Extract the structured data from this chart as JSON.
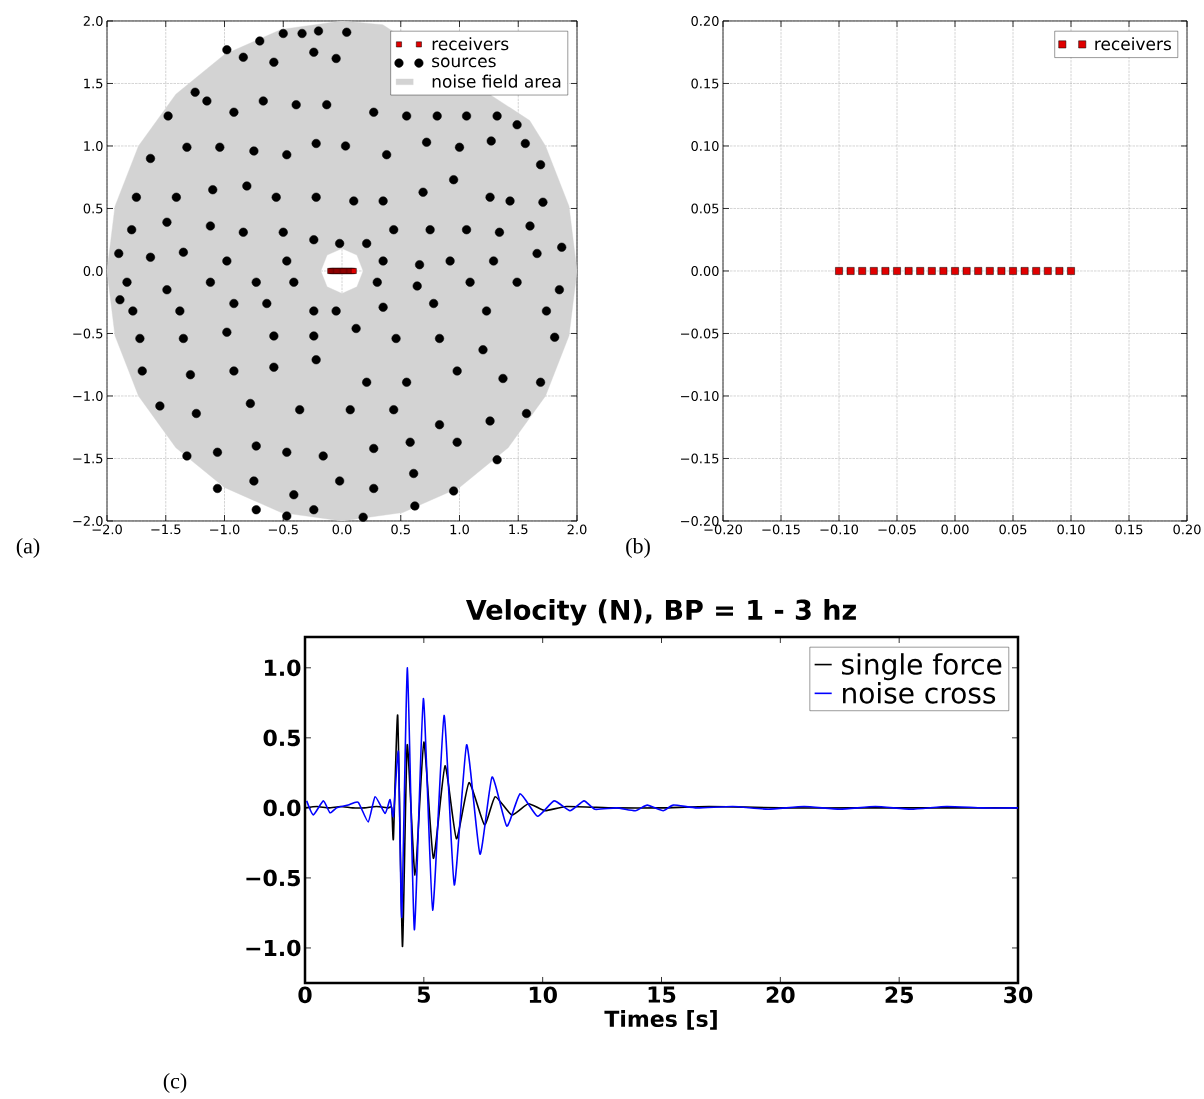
{
  "chart_data": [
    {
      "type": "scatter",
      "xlim": [
        -2,
        2
      ],
      "ylim": [
        -2,
        2
      ],
      "xticks": [
        {
          "value": -2,
          "label": "−2.0"
        },
        {
          "value": -1.5,
          "label": "−1.5"
        },
        {
          "value": -1,
          "label": "−1.0"
        },
        {
          "value": -0.5,
          "label": "−0.5"
        },
        {
          "value": 0,
          "label": "0.0"
        },
        {
          "value": 0.5,
          "label": "0.5"
        },
        {
          "value": 1,
          "label": "1.0"
        },
        {
          "value": 1.5,
          "label": "1.5"
        },
        {
          "value": 2,
          "label": "2.0"
        }
      ],
      "yticks": [
        {
          "value": -2,
          "label": "−2.0"
        },
        {
          "value": -1.5,
          "label": "−1.5"
        },
        {
          "value": -1,
          "label": "−1.0"
        },
        {
          "value": -0.5,
          "label": "−0.5"
        },
        {
          "value": 0,
          "label": "0.0"
        },
        {
          "value": 0.5,
          "label": "0.5"
        },
        {
          "value": 1,
          "label": "1.0"
        },
        {
          "value": 1.5,
          "label": "1.5"
        },
        {
          "value": 2,
          "label": "2.0"
        }
      ],
      "grid": true,
      "legend": "top right",
      "annotations": [
        "(a)"
      ],
      "series": [
        {
          "name": "receivers",
          "type": "scatter",
          "marker": "square",
          "color": "#e00000",
          "x": [
            -0.1,
            -0.09,
            -0.08,
            -0.07,
            -0.06,
            -0.05,
            -0.04,
            -0.03,
            -0.02,
            -0.01,
            0,
            0.01,
            0.02,
            0.03,
            0.04,
            0.05,
            0.06,
            0.07,
            0.08,
            0.09,
            0.1
          ],
          "values": [
            0,
            0,
            0,
            0,
            0,
            0,
            0,
            0,
            0,
            0,
            0,
            0,
            0,
            0,
            0,
            0,
            0,
            0,
            0,
            0,
            0
          ]
        },
        {
          "name": "sources",
          "type": "scatter",
          "marker": "circle",
          "color": "#000000",
          "x": [
            -0.7,
            -0.2,
            0.04,
            -0.34,
            -0.5,
            -0.98,
            -0.84,
            -0.58,
            -0.24,
            -0.05,
            -1.25,
            -1.15,
            -1.48,
            -0.92,
            -0.67,
            -0.39,
            -0.13,
            0.27,
            0.55,
            0.81,
            1.06,
            1.32,
            1.49,
            -1.63,
            -1.32,
            -1.04,
            -0.75,
            -0.47,
            -0.22,
            0.03,
            0.38,
            0.72,
            1.0,
            1.27,
            1.56,
            1.69,
            -1.75,
            -1.41,
            -1.1,
            -0.81,
            -0.56,
            -0.22,
            0.1,
            0.35,
            0.69,
            0.95,
            1.26,
            1.43,
            1.71,
            -1.79,
            -1.49,
            -1.12,
            -0.84,
            -0.5,
            -0.24,
            -0.02,
            0.21,
            0.44,
            0.75,
            1.06,
            1.34,
            1.6,
            -1.9,
            -1.63,
            -1.35,
            -0.98,
            -0.47,
            0.35,
            0.66,
            0.92,
            1.29,
            1.66,
            1.87,
            -1.83,
            -1.49,
            -1.12,
            -0.73,
            -0.41,
            0.3,
            0.64,
            1.09,
            1.49,
            1.85,
            -1.89,
            -1.78,
            -1.38,
            -0.92,
            -0.64,
            -0.24,
            -0.05,
            0.35,
            0.78,
            1.23,
            1.74,
            -1.72,
            -1.35,
            -0.98,
            -0.58,
            -0.24,
            0.12,
            0.46,
            0.83,
            1.2,
            1.81,
            -1.7,
            -1.29,
            -0.92,
            -0.58,
            -0.22,
            0.21,
            0.55,
            0.98,
            1.37,
            1.69,
            -1.55,
            -1.24,
            -0.78,
            -0.36,
            0.07,
            0.44,
            0.83,
            1.26,
            1.57,
            -1.32,
            -1.06,
            -0.73,
            -0.47,
            -0.16,
            0.27,
            0.58,
            0.98,
            1.32,
            -1.06,
            -0.75,
            -0.41,
            -0.02,
            0.27,
            0.61,
            0.95,
            -0.73,
            -0.47,
            -0.24,
            0.18,
            0.62
          ],
          "values": [
            1.84,
            1.92,
            1.91,
            1.9,
            1.9,
            1.77,
            1.71,
            1.67,
            1.75,
            1.7,
            1.43,
            1.36,
            1.24,
            1.27,
            1.36,
            1.33,
            1.33,
            1.27,
            1.24,
            1.24,
            1.24,
            1.24,
            1.17,
            0.9,
            0.99,
            0.99,
            0.96,
            0.93,
            1.02,
            1.0,
            0.93,
            1.03,
            0.99,
            1.04,
            1.02,
            0.85,
            0.59,
            0.59,
            0.65,
            0.68,
            0.59,
            0.59,
            0.56,
            0.56,
            0.63,
            0.73,
            0.59,
            0.56,
            0.55,
            0.33,
            0.39,
            0.36,
            0.31,
            0.31,
            0.25,
            0.22,
            0.22,
            0.33,
            0.33,
            0.33,
            0.31,
            0.36,
            0.14,
            0.11,
            0.15,
            0.08,
            0.08,
            0.08,
            0.05,
            0.08,
            0.08,
            0.14,
            0.19,
            -0.09,
            -0.15,
            -0.09,
            -0.09,
            -0.09,
            -0.09,
            -0.12,
            -0.09,
            -0.09,
            -0.15,
            -0.23,
            -0.32,
            -0.32,
            -0.26,
            -0.26,
            -0.32,
            -0.32,
            -0.29,
            -0.26,
            -0.32,
            -0.32,
            -0.54,
            -0.54,
            -0.49,
            -0.52,
            -0.52,
            -0.46,
            -0.54,
            -0.54,
            -0.63,
            -0.53,
            -0.8,
            -0.83,
            -0.8,
            -0.77,
            -0.71,
            -0.89,
            -0.89,
            -0.8,
            -0.86,
            -0.89,
            -1.08,
            -1.14,
            -1.06,
            -1.11,
            -1.11,
            -1.11,
            -1.23,
            -1.2,
            -1.14,
            -1.48,
            -1.45,
            -1.4,
            -1.45,
            -1.48,
            -1.42,
            -1.37,
            -1.37,
            -1.51,
            -1.74,
            -1.68,
            -1.79,
            -1.68,
            -1.74,
            -1.62,
            -1.76,
            -1.91,
            -1.96,
            -1.91,
            -1.97,
            -1.88
          ]
        },
        {
          "name": "noise field area",
          "type": "area",
          "color": "#d3d3d3",
          "x": [
            2,
            1.932,
            1.732,
            1.597,
            0.347,
            0,
            -0.518,
            -1,
            -1.414,
            -1.732,
            -1.932,
            -2,
            -1.932,
            -1.732,
            -1.414,
            -1,
            -0.518,
            0,
            0.518,
            1,
            1.414,
            1.732,
            1.932,
            2,
            0.18,
            0.127,
            0,
            -0.127,
            -0.18,
            -0.127,
            0,
            0.127,
            0.18
          ],
          "values": [
            0,
            0.518,
            1,
            1.204,
            1.97,
            2,
            1.932,
            1.732,
            1.414,
            1,
            0.518,
            0,
            -0.518,
            -1,
            -1.414,
            -1.732,
            -1.932,
            -2,
            -1.932,
            -1.732,
            -1.414,
            -1,
            -0.518,
            0,
            0,
            0.127,
            0.18,
            0.127,
            0,
            -0.127,
            -0.18,
            -0.127,
            0
          ]
        }
      ]
    },
    {
      "type": "scatter",
      "xlim": [
        -0.2,
        0.2
      ],
      "ylim": [
        -0.2,
        0.2
      ],
      "xticks": [
        {
          "value": -0.2,
          "label": "−0.20"
        },
        {
          "value": -0.15,
          "label": "−0.15"
        },
        {
          "value": -0.1,
          "label": "−0.10"
        },
        {
          "value": -0.05,
          "label": "−0.05"
        },
        {
          "value": 0,
          "label": "0.00"
        },
        {
          "value": 0.05,
          "label": "0.05"
        },
        {
          "value": 0.1,
          "label": "0.10"
        },
        {
          "value": 0.15,
          "label": "0.15"
        },
        {
          "value": 0.2,
          "label": "0.20"
        }
      ],
      "yticks": [
        {
          "value": -0.2,
          "label": "−0.20"
        },
        {
          "value": -0.15,
          "label": "−0.15"
        },
        {
          "value": -0.1,
          "label": "−0.10"
        },
        {
          "value": -0.05,
          "label": "−0.05"
        },
        {
          "value": 0,
          "label": "0.00"
        },
        {
          "value": 0.05,
          "label": "0.05"
        },
        {
          "value": 0.1,
          "label": "0.10"
        },
        {
          "value": 0.15,
          "label": "0.15"
        },
        {
          "value": 0.2,
          "label": "0.20"
        }
      ],
      "grid": true,
      "legend": "top right",
      "annotations": [
        "(b)"
      ],
      "series": [
        {
          "name": "receivers",
          "type": "scatter",
          "marker": "square",
          "color": "#e00000",
          "x": [
            -0.1,
            -0.09,
            -0.08,
            -0.07,
            -0.06,
            -0.05,
            -0.04,
            -0.03,
            -0.02,
            -0.01,
            0,
            0.01,
            0.02,
            0.03,
            0.04,
            0.05,
            0.06,
            0.07,
            0.08,
            0.09,
            0.1
          ],
          "values": [
            0,
            0,
            0,
            0,
            0,
            0,
            0,
            0,
            0,
            0,
            0,
            0,
            0,
            0,
            0,
            0,
            0,
            0,
            0,
            0,
            0
          ]
        }
      ]
    },
    {
      "type": "line",
      "title": "Velocity (N), BP = 1 - 3 hz",
      "xlabel": "Times [s]",
      "xlim": [
        0,
        30
      ],
      "ylim": [
        -1.25,
        1.22
      ],
      "xticks": [
        0,
        5,
        10,
        15,
        20,
        25,
        30
      ],
      "yticks": [
        {
          "value": -1,
          "label": "−1.0"
        },
        {
          "value": -0.5,
          "label": "−0.5"
        },
        {
          "value": 0,
          "label": "0.0"
        },
        {
          "value": 0.5,
          "label": "0.5"
        },
        {
          "value": 1,
          "label": "1.0"
        }
      ],
      "legend": "top right",
      "line_style": "solid",
      "annotations": [
        "(c)"
      ],
      "series": [
        {
          "name": "single force",
          "color": "#000000",
          "x": [
            0,
            0.5,
            1,
            1.5,
            2,
            2.5,
            3,
            3.5,
            3.65,
            3.72,
            3.9,
            4.1,
            4.3,
            4.63,
            5.0,
            5.4,
            5.89,
            6.37,
            6.9,
            7.55,
            8.0,
            8.7,
            9.4,
            10.1,
            11,
            13,
            15,
            17,
            20,
            23,
            26,
            30
          ],
          "values": [
            0,
            0.01,
            0,
            0.01,
            0,
            0,
            0.01,
            0,
            0,
            -0.22,
            0.66,
            -0.99,
            0.45,
            -0.48,
            0.47,
            -0.36,
            0.3,
            -0.22,
            0.18,
            -0.12,
            0.08,
            -0.05,
            0.03,
            -0.02,
            0.01,
            0,
            0,
            0.01,
            0,
            0,
            0,
            0
          ]
        },
        {
          "name": "noise cross",
          "color": "#0000ff",
          "x": [
            0.07,
            0.35,
            0.77,
            1.05,
            1.33,
            1.82,
            2.24,
            2.66,
            2.95,
            3.37,
            3.58,
            3.72,
            3.93,
            4.07,
            4.31,
            4.6,
            4.98,
            5.37,
            5.85,
            6.28,
            6.8,
            7.36,
            7.87,
            8.49,
            9.05,
            9.78,
            10.48,
            11.15,
            11.74,
            12.2,
            13.1,
            13.9,
            14.4,
            15.07,
            15.5,
            16.5,
            18,
            19.5,
            21,
            22.5,
            24,
            25.5,
            27,
            28.5,
            30
          ],
          "values": [
            0.05,
            -0.05,
            0.05,
            -0.035,
            0,
            0.02,
            0.04,
            -0.1,
            0.08,
            -0.04,
            0.06,
            -0.06,
            0.4,
            -0.78,
            1.0,
            -0.87,
            0.78,
            -0.73,
            0.66,
            -0.55,
            0.45,
            -0.33,
            0.22,
            -0.13,
            0.1,
            -0.06,
            0.05,
            -0.02,
            0.05,
            -0.01,
            0,
            -0.02,
            0.02,
            -0.02,
            0.02,
            0,
            0.01,
            -0.01,
            0.01,
            -0.01,
            0.01,
            -0.01,
            0.01,
            0,
            0
          ]
        }
      ]
    }
  ]
}
